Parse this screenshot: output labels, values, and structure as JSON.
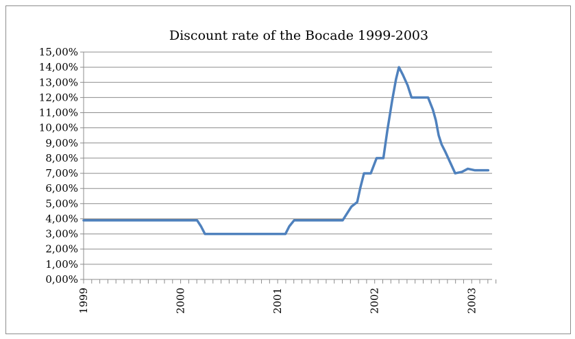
{
  "chart_data": {
    "type": "line",
    "title": "Discount rate of the Bocade 1999-2003",
    "xlabel": "",
    "ylabel": "",
    "ylim": [
      0,
      15
    ],
    "y_ticks": [
      "0,00%",
      "1,00%",
      "2,00%",
      "3,00%",
      "4,00%",
      "5,00%",
      "6,00%",
      "7,00%",
      "8,00%",
      "9,00%",
      "10,00%",
      "11,00%",
      "12,00%",
      "13,00%",
      "14,00%",
      "15,00%"
    ],
    "x_ticks": [
      {
        "label": "1999",
        "x": 1999.0
      },
      {
        "label": "2000",
        "x": 2000.0
      },
      {
        "label": "2001",
        "x": 2001.0
      },
      {
        "label": "2002",
        "x": 2002.0
      },
      {
        "label": "2003",
        "x": 2003.0
      }
    ],
    "xlim": [
      1999.0,
      2003.21
    ],
    "grid": true,
    "color": "#4f81bd",
    "series": [
      {
        "points": [
          [
            1999.0,
            3.9
          ],
          [
            2000.17,
            3.9
          ],
          [
            2000.21,
            3.5
          ],
          [
            2000.25,
            3.0
          ],
          [
            2001.08,
            3.0
          ],
          [
            2001.12,
            3.5
          ],
          [
            2001.17,
            3.9
          ],
          [
            2001.67,
            3.9
          ],
          [
            2001.72,
            4.4
          ],
          [
            2001.76,
            4.8
          ],
          [
            2001.82,
            5.1
          ],
          [
            2001.85,
            6.0
          ],
          [
            2001.89,
            7.0
          ],
          [
            2001.96,
            7.0
          ],
          [
            2002.02,
            8.0
          ],
          [
            2002.09,
            8.0
          ],
          [
            2002.13,
            9.8
          ],
          [
            2002.18,
            11.8
          ],
          [
            2002.22,
            13.2
          ],
          [
            2002.25,
            14.0
          ],
          [
            2002.29,
            13.5
          ],
          [
            2002.34,
            12.8
          ],
          [
            2002.38,
            12.0
          ],
          [
            2002.55,
            12.0
          ],
          [
            2002.6,
            11.2
          ],
          [
            2002.63,
            10.5
          ],
          [
            2002.66,
            9.5
          ],
          [
            2002.69,
            8.9
          ],
          [
            2002.73,
            8.4
          ],
          [
            2002.78,
            7.7
          ],
          [
            2002.83,
            7.0
          ],
          [
            2002.9,
            7.1
          ],
          [
            2002.96,
            7.3
          ],
          [
            2003.03,
            7.2
          ],
          [
            2003.17,
            7.2
          ]
        ]
      }
    ]
  }
}
